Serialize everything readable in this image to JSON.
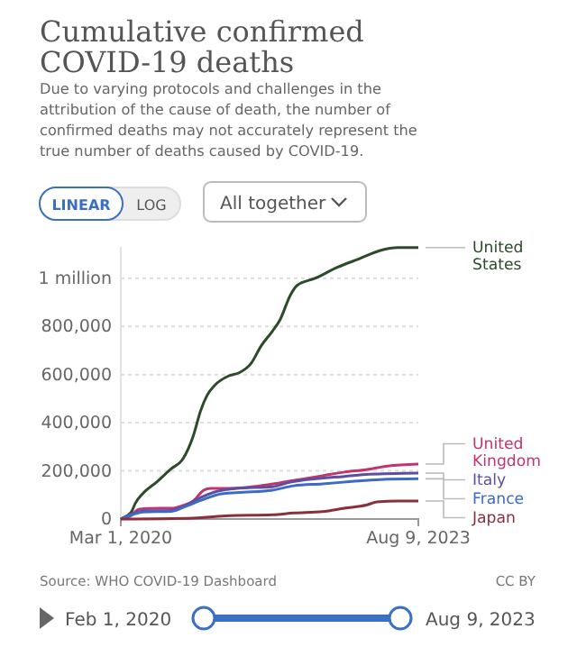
{
  "chart_data": {
    "type": "line",
    "title": "Cumulative confirmed COVID-19 deaths",
    "subtitle": "Due to varying protocols and challenges in the attribution of the cause of death, the number of confirmed deaths may not accurately represent the true number of deaths caused by COVID-19.",
    "annotations": [
      "LINEAR",
      "LOG",
      "All together",
      "Source: WHO COVID-19 Dashboard",
      "CC BY",
      "Feb 1, 2020",
      "Aug 9, 2023"
    ],
    "xlim": [
      "2020-03-01",
      "2023-08-09"
    ],
    "xticks": [
      {
        "value": "2020-03-01",
        "label": "Mar 1, 2020"
      },
      {
        "value": "2023-08-09",
        "label": "Aug 9, 2023"
      }
    ],
    "ylim": [
      0,
      1130000
    ],
    "yticks": [
      0,
      {
        "value": 200000,
        "label": "200,000"
      },
      {
        "value": 400000,
        "label": "400,000"
      },
      {
        "value": 600000,
        "label": "600,000"
      },
      {
        "value": 800000,
        "label": "800,000"
      },
      {
        "value": 1000000,
        "label": "1 million"
      }
    ],
    "grid": "y",
    "legend": "right",
    "series": [
      {
        "name": "United States",
        "color": "#2d4a2a",
        "x": [
          "2020-03-01",
          "2020-04-15",
          "2020-05-01",
          "2020-06-01",
          "2020-08-01",
          "2020-10-01",
          "2020-11-15",
          "2021-01-01",
          "2021-02-01",
          "2021-03-01",
          "2021-04-01",
          "2021-06-01",
          "2021-07-15",
          "2021-09-01",
          "2021-10-15",
          "2021-12-01",
          "2022-01-01",
          "2022-02-15",
          "2022-03-15",
          "2022-06-01",
          "2022-09-01",
          "2022-12-01",
          "2023-03-01",
          "2023-05-15",
          "2023-08-09"
        ],
        "values": [
          0,
          30000,
          65000,
          105000,
          155000,
          210000,
          245000,
          345000,
          450000,
          515000,
          555000,
          595000,
          608000,
          645000,
          720000,
          780000,
          825000,
          930000,
          970000,
          1000000,
          1045000,
          1080000,
          1115000,
          1127000,
          1127000
        ]
      },
      {
        "name": "United Kingdom",
        "color": "#c4336f",
        "x": [
          "2020-03-01",
          "2020-04-15",
          "2020-05-15",
          "2020-07-01",
          "2020-10-01",
          "2020-11-15",
          "2021-01-01",
          "2021-02-15",
          "2021-03-15",
          "2021-07-01",
          "2021-10-01",
          "2022-01-01",
          "2022-04-01",
          "2022-07-01",
          "2022-10-01",
          "2023-01-01",
          "2023-04-01",
          "2023-08-09"
        ],
        "values": [
          0,
          15000,
          40000,
          44000,
          45000,
          55000,
          75000,
          120000,
          127000,
          128000,
          137000,
          150000,
          165000,
          180000,
          195000,
          205000,
          220000,
          228000
        ]
      },
      {
        "name": "Italy",
        "color": "#5b50a0",
        "x": [
          "2020-03-01",
          "2020-04-15",
          "2020-06-01",
          "2020-10-01",
          "2020-12-01",
          "2021-01-15",
          "2021-04-15",
          "2021-07-01",
          "2021-12-01",
          "2022-02-15",
          "2022-06-01",
          "2022-10-01",
          "2023-01-15",
          "2023-08-09"
        ],
        "values": [
          0,
          22000,
          33000,
          36000,
          57000,
          81000,
          116000,
          127000,
          134000,
          153000,
          167000,
          177000,
          186000,
          191000
        ]
      },
      {
        "name": "France",
        "color": "#3d6ac4",
        "x": [
          "2020-03-01",
          "2020-04-15",
          "2020-06-01",
          "2020-10-01",
          "2020-12-01",
          "2021-02-01",
          "2021-05-01",
          "2021-08-01",
          "2021-12-01",
          "2022-03-01",
          "2022-07-01",
          "2022-11-01",
          "2023-03-01",
          "2023-08-09"
        ],
        "values": [
          0,
          17000,
          29000,
          32000,
          53000,
          77000,
          105000,
          111000,
          120000,
          138000,
          146000,
          156000,
          164000,
          167000
        ]
      },
      {
        "name": "Japan",
        "color": "#8a2f3b",
        "x": [
          "2020-03-01",
          "2021-01-01",
          "2021-06-01",
          "2021-12-01",
          "2022-03-01",
          "2022-07-01",
          "2022-10-01",
          "2023-01-01",
          "2023-02-15",
          "2023-05-15",
          "2023-08-09"
        ],
        "values": [
          0,
          4000,
          14000,
          18000,
          25000,
          31000,
          45000,
          58000,
          71000,
          75000,
          75000
        ]
      }
    ]
  }
}
